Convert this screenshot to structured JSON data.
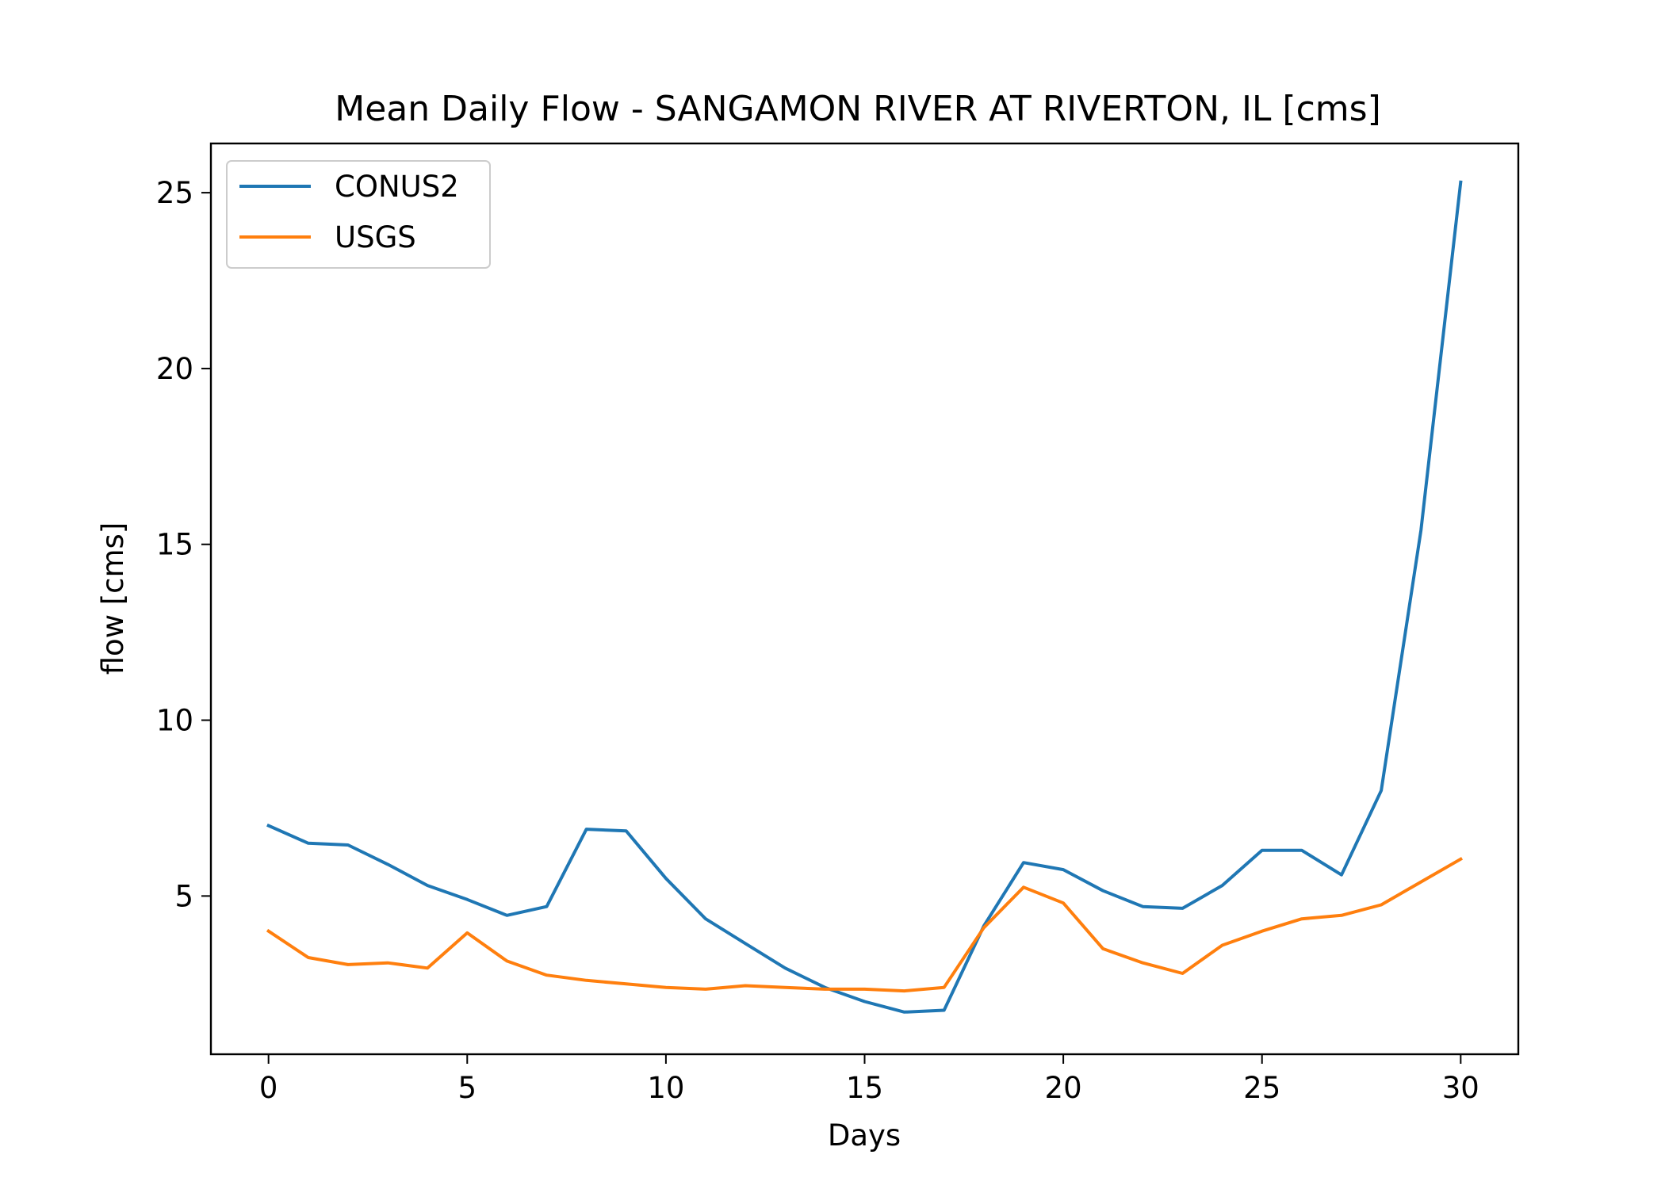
{
  "chart_data": {
    "type": "line",
    "title": "Mean Daily Flow - SANGAMON RIVER AT RIVERTON, IL [cms]",
    "xlabel": "Days",
    "ylabel": "flow [cms]",
    "xlim": [
      -1.45,
      31.45
    ],
    "ylim": [
      0.5,
      26.4
    ],
    "xticks": [
      0,
      5,
      10,
      15,
      20,
      25,
      30
    ],
    "xtick_labels": [
      "0",
      "5",
      "10",
      "15",
      "20",
      "25",
      "30"
    ],
    "yticks": [
      5,
      10,
      15,
      20,
      25
    ],
    "ytick_labels": [
      "5",
      "10",
      "15",
      "20",
      "25"
    ],
    "grid": false,
    "legend_position": "upper-left",
    "x": [
      0,
      1,
      2,
      3,
      4,
      5,
      6,
      7,
      8,
      9,
      10,
      11,
      12,
      13,
      14,
      15,
      16,
      17,
      18,
      19,
      20,
      21,
      22,
      23,
      24,
      25,
      26,
      27,
      28,
      29,
      30
    ],
    "series": [
      {
        "name": "CONUS2",
        "color": "#1f77b4",
        "values": [
          7.0,
          6.5,
          6.45,
          5.9,
          5.3,
          4.9,
          4.45,
          4.7,
          6.9,
          6.85,
          5.5,
          4.35,
          3.65,
          2.95,
          2.4,
          2.0,
          1.7,
          1.75,
          4.15,
          5.95,
          5.75,
          5.15,
          4.7,
          4.65,
          5.3,
          6.3,
          6.3,
          5.6,
          8.0,
          15.4,
          25.3
        ]
      },
      {
        "name": "USGS",
        "color": "#ff7f0e",
        "values": [
          4.0,
          3.25,
          3.05,
          3.1,
          2.95,
          3.95,
          3.15,
          2.75,
          2.6,
          2.5,
          2.4,
          2.35,
          2.45,
          2.4,
          2.35,
          2.35,
          2.3,
          2.4,
          4.1,
          5.25,
          4.8,
          3.5,
          3.1,
          2.8,
          3.6,
          4.0,
          4.35,
          4.45,
          4.75,
          5.4,
          6.05
        ]
      }
    ]
  }
}
